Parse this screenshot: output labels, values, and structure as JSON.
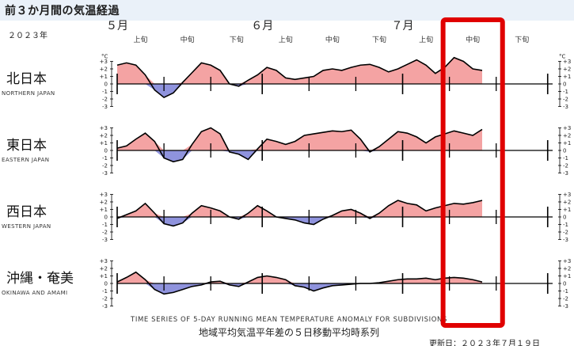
{
  "title": "前３か月間の気温経過",
  "year_label": "２０２３年",
  "months": [
    "５月",
    "６月",
    "７月"
  ],
  "periods": [
    "上旬",
    "中旬",
    "下旬",
    "上旬",
    "中旬",
    "下旬",
    "上旬",
    "中旬",
    "下旬"
  ],
  "unit": "°C",
  "footer_en": "TIME SERIES OF 5-DAY RUNNING MEAN TEMPERATURE ANOMALY FOR SUBDIVISIONS",
  "footer_jp": "地域平均気温平年差の５日移動平均時系列",
  "updated": "更新日：２０２３年７月１９日",
  "colors": {
    "positive_fill": "#f4a3a3",
    "negative_fill": "#8f93dd",
    "line": "#000000",
    "highlight_box": "#e00000",
    "title_bar": "#eaf1f9"
  },
  "highlight_box": {
    "period": "中旬",
    "month": "７月"
  },
  "chart_data": {
    "type": "area",
    "x": [
      "05-01",
      "05-03",
      "05-05",
      "05-07",
      "05-09",
      "05-11",
      "05-13",
      "05-15",
      "05-17",
      "05-19",
      "05-21",
      "05-23",
      "05-25",
      "05-27",
      "05-29",
      "05-31",
      "06-02",
      "06-04",
      "06-06",
      "06-08",
      "06-10",
      "06-12",
      "06-14",
      "06-16",
      "06-18",
      "06-20",
      "06-22",
      "06-24",
      "06-26",
      "06-28",
      "06-30",
      "07-02",
      "07-04",
      "07-06",
      "07-08",
      "07-10",
      "07-12",
      "07-14",
      "07-16",
      "07-18"
    ],
    "ylim": [
      -3,
      3
    ],
    "yticks": [
      "+3",
      "+2",
      "+1",
      "0",
      "-1",
      "-2",
      "-3"
    ],
    "series": [
      {
        "name": "北日本",
        "name_en": "NORTHERN JAPAN",
        "values": [
          2.5,
          2.8,
          2.5,
          1.2,
          -0.8,
          -1.8,
          -1.2,
          0.2,
          1.5,
          2.8,
          2.5,
          1.8,
          0.0,
          -0.3,
          0.5,
          1.2,
          2.2,
          1.8,
          0.8,
          0.6,
          0.8,
          1.0,
          1.8,
          2.0,
          1.8,
          2.2,
          2.5,
          2.6,
          2.2,
          1.6,
          2.0,
          2.6,
          3.2,
          2.5,
          1.4,
          2.2,
          3.5,
          3.0,
          2.0,
          1.8
        ]
      },
      {
        "name": "東日本",
        "name_en": "EASTERN JAPAN",
        "values": [
          0.3,
          0.6,
          1.5,
          2.3,
          1.2,
          -1.0,
          -1.5,
          -1.2,
          0.8,
          2.5,
          3.0,
          2.2,
          -0.2,
          -0.5,
          -1.2,
          0.2,
          1.5,
          1.2,
          0.8,
          1.2,
          2.0,
          2.2,
          2.4,
          2.6,
          2.5,
          2.7,
          1.5,
          -0.2,
          0.5,
          1.5,
          2.5,
          2.3,
          1.8,
          1.0,
          1.8,
          2.2,
          2.6,
          2.3,
          2.0,
          2.8
        ]
      },
      {
        "name": "西日本",
        "name_en": "WESTERN JAPAN",
        "values": [
          -0.2,
          0.3,
          0.8,
          1.8,
          0.5,
          -0.9,
          -1.2,
          -0.8,
          0.5,
          1.5,
          1.2,
          0.8,
          0.0,
          -0.3,
          0.5,
          1.5,
          0.8,
          0.0,
          -0.2,
          -0.4,
          -0.8,
          -1.0,
          -0.3,
          0.2,
          0.8,
          1.0,
          0.5,
          -0.2,
          0.5,
          1.5,
          2.2,
          1.8,
          1.6,
          0.8,
          1.2,
          1.5,
          1.8,
          1.7,
          1.9,
          2.2
        ]
      },
      {
        "name": "沖縄・奄美",
        "name_en": "OKINAWA AND AMAMI",
        "values": [
          0.2,
          0.8,
          1.5,
          0.5,
          -0.8,
          -1.4,
          -1.2,
          -0.8,
          -0.4,
          -0.2,
          0.2,
          0.3,
          -0.2,
          -0.4,
          0.2,
          0.8,
          1.0,
          0.8,
          0.5,
          -0.3,
          -0.5,
          -1.0,
          -0.6,
          -0.3,
          -0.2,
          -0.1,
          0.0,
          0.0,
          0.1,
          0.3,
          0.5,
          0.6,
          0.6,
          0.7,
          0.5,
          0.7,
          0.8,
          0.7,
          0.5,
          0.2
        ]
      }
    ]
  }
}
